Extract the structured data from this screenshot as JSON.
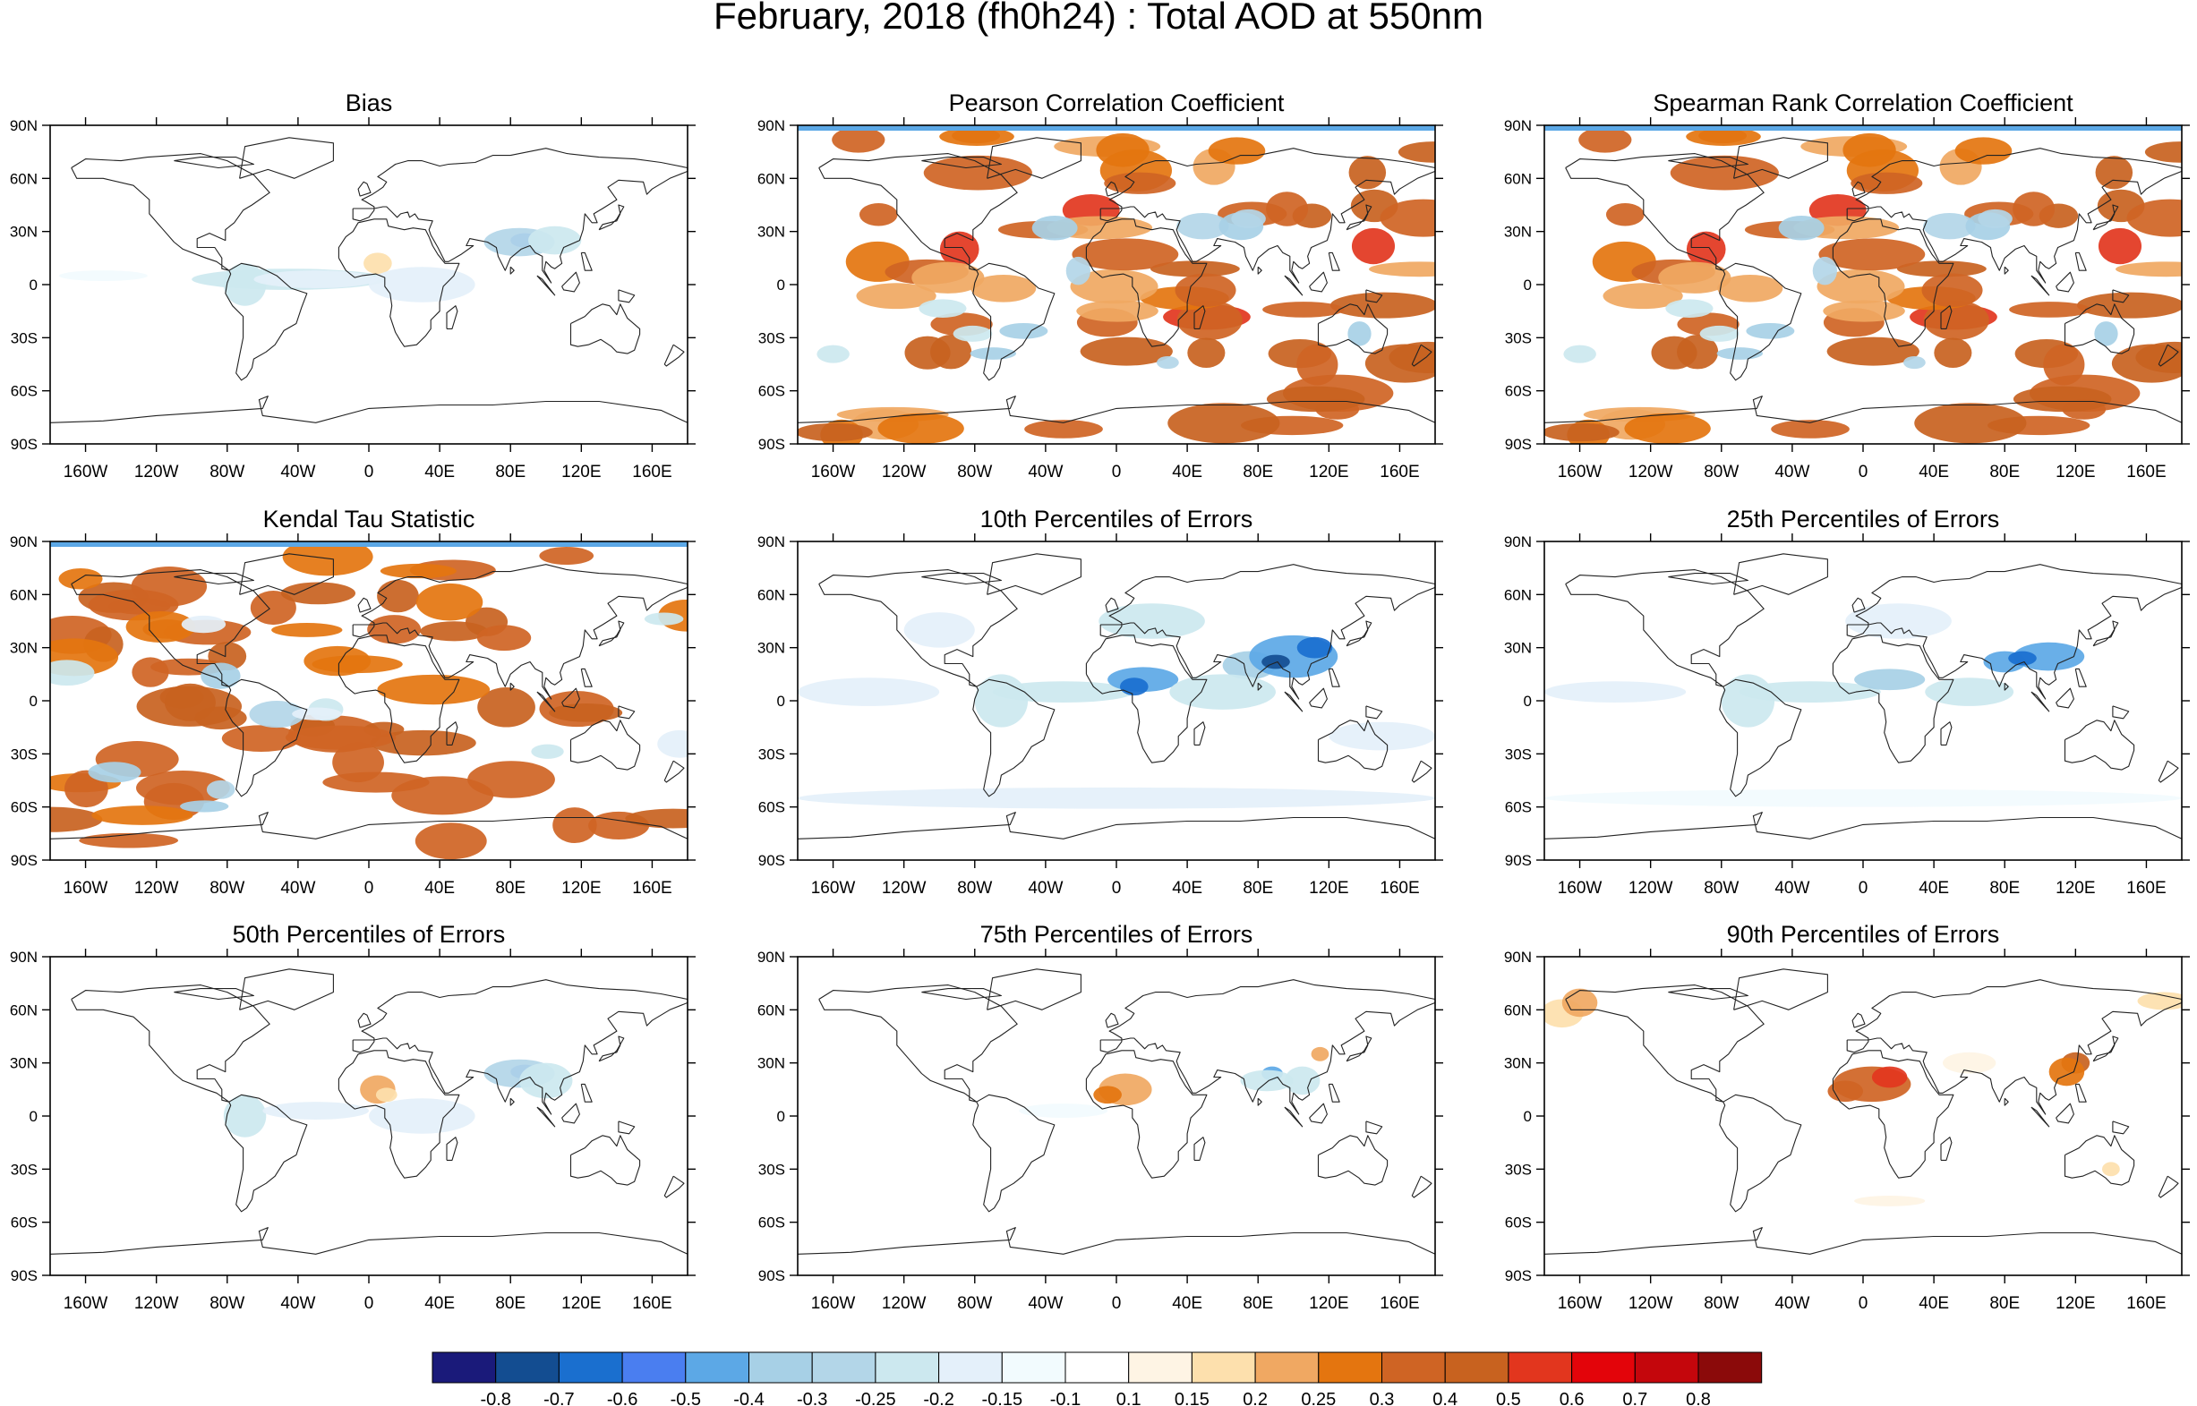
{
  "figure": {
    "title": "February, 2018 (fh0h24) : Total AOD at 550nm"
  },
  "axes": {
    "lat_labels": [
      "90N",
      "60N",
      "30N",
      "0",
      "30S",
      "60S",
      "90S"
    ],
    "lon_labels": [
      "160W",
      "120W",
      "80W",
      "40W",
      "0",
      "40E",
      "80E",
      "120E",
      "160E"
    ]
  },
  "panels": [
    {
      "title": "Bias",
      "pattern": "bias"
    },
    {
      "title": "Pearson Correlation Coefficient",
      "pattern": "corr"
    },
    {
      "title": "Spearman Rank Correlation Coefficient",
      "pattern": "corr"
    },
    {
      "title": "Kendal Tau Statistic",
      "pattern": "kendall"
    },
    {
      "title": "10th Percentiles of Errors",
      "pattern": "p10"
    },
    {
      "title": "25th Percentiles of Errors",
      "pattern": "p25"
    },
    {
      "title": "50th Percentiles of Errors",
      "pattern": "p50"
    },
    {
      "title": "75th Percentiles of Errors",
      "pattern": "p75"
    },
    {
      "title": "90th Percentiles of Errors",
      "pattern": "p90"
    }
  ],
  "colorbar": {
    "labels": [
      "-0.8",
      "-0.7",
      "-0.6",
      "-0.5",
      "-0.4",
      "-0.3",
      "-0.25",
      "-0.2",
      "-0.15",
      "-0.1",
      "0.1",
      "0.15",
      "0.2",
      "0.25",
      "0.3",
      "0.4",
      "0.5",
      "0.6",
      "0.7",
      "0.8"
    ],
    "colors": [
      "#1a1a7a",
      "#134d91",
      "#1a6fcf",
      "#4a7ef0",
      "#5ca8e6",
      "#a7d0e6",
      "#b3d6e8",
      "#cce8ef",
      "#e4f0fa",
      "#f2fbfe",
      "#ffffff",
      "#fef4e4",
      "#fde0ad",
      "#f0a862",
      "#e4750f",
      "#cf6424",
      "#c8621f",
      "#e2361e",
      "#e3040a",
      "#c4060c",
      "#8b0a0a"
    ]
  }
}
